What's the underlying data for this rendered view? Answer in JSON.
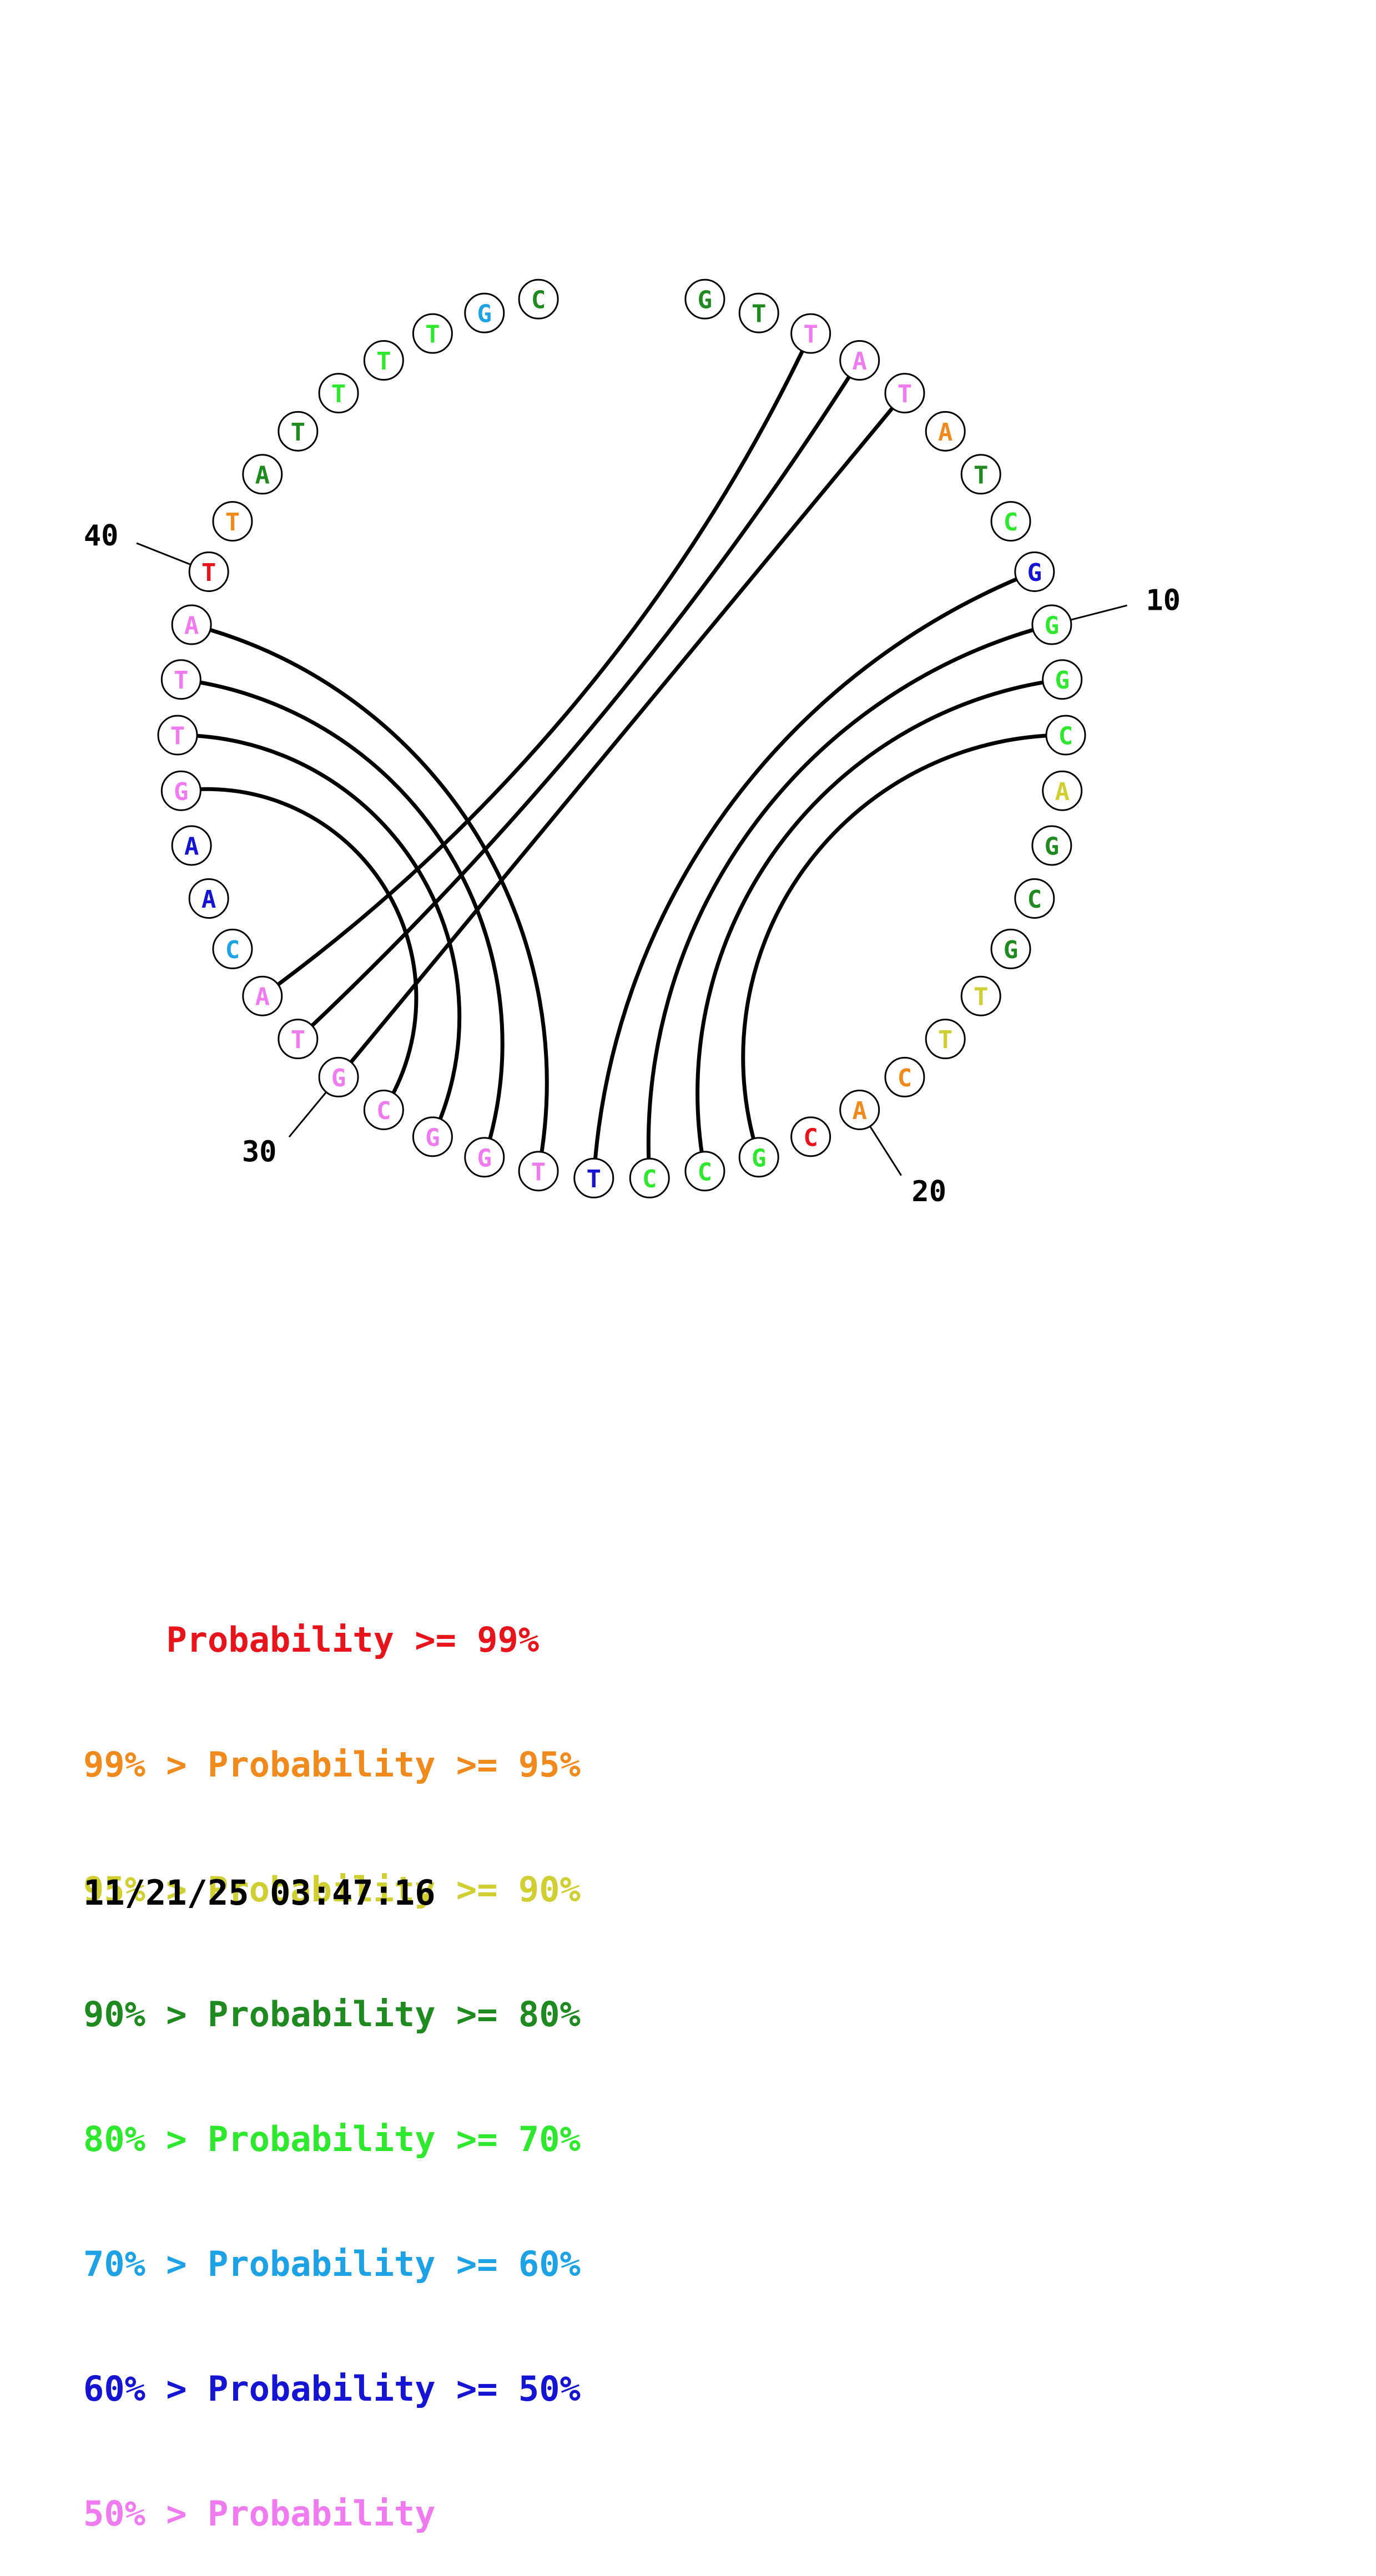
{
  "colors": {
    "p99": "#e8141c",
    "p95": "#f08a1c",
    "p90": "#cfcf32",
    "p80": "#1f8a1f",
    "p70": "#2ee82e",
    "p60": "#1ea2e6",
    "p50": "#1414d2",
    "plt50": "#f07af0"
  },
  "diagram": {
    "bases": [
      {
        "n": 1,
        "letter": "G",
        "color": "p80"
      },
      {
        "n": 2,
        "letter": "T",
        "color": "p80"
      },
      {
        "n": 3,
        "letter": "T",
        "color": "plt50"
      },
      {
        "n": 4,
        "letter": "A",
        "color": "plt50"
      },
      {
        "n": 5,
        "letter": "T",
        "color": "plt50"
      },
      {
        "n": 6,
        "letter": "A",
        "color": "p95"
      },
      {
        "n": 7,
        "letter": "T",
        "color": "p80"
      },
      {
        "n": 8,
        "letter": "C",
        "color": "p70"
      },
      {
        "n": 9,
        "letter": "G",
        "color": "p50"
      },
      {
        "n": 10,
        "letter": "G",
        "color": "p70"
      },
      {
        "n": 11,
        "letter": "G",
        "color": "p70"
      },
      {
        "n": 12,
        "letter": "C",
        "color": "p70"
      },
      {
        "n": 13,
        "letter": "A",
        "color": "p90"
      },
      {
        "n": 14,
        "letter": "G",
        "color": "p80"
      },
      {
        "n": 15,
        "letter": "C",
        "color": "p80"
      },
      {
        "n": 16,
        "letter": "G",
        "color": "p80"
      },
      {
        "n": 17,
        "letter": "T",
        "color": "p90"
      },
      {
        "n": 18,
        "letter": "T",
        "color": "p90"
      },
      {
        "n": 19,
        "letter": "C",
        "color": "p95"
      },
      {
        "n": 20,
        "letter": "A",
        "color": "p95"
      },
      {
        "n": 21,
        "letter": "C",
        "color": "p99"
      },
      {
        "n": 22,
        "letter": "G",
        "color": "p70"
      },
      {
        "n": 23,
        "letter": "C",
        "color": "p70"
      },
      {
        "n": 24,
        "letter": "C",
        "color": "p70"
      },
      {
        "n": 25,
        "letter": "T",
        "color": "p50"
      },
      {
        "n": 26,
        "letter": "T",
        "color": "plt50"
      },
      {
        "n": 27,
        "letter": "G",
        "color": "plt50"
      },
      {
        "n": 28,
        "letter": "G",
        "color": "plt50"
      },
      {
        "n": 29,
        "letter": "C",
        "color": "plt50"
      },
      {
        "n": 30,
        "letter": "G",
        "color": "plt50"
      },
      {
        "n": 31,
        "letter": "T",
        "color": "plt50"
      },
      {
        "n": 32,
        "letter": "A",
        "color": "plt50"
      },
      {
        "n": 33,
        "letter": "C",
        "color": "p60"
      },
      {
        "n": 34,
        "letter": "A",
        "color": "p50"
      },
      {
        "n": 35,
        "letter": "A",
        "color": "p50"
      },
      {
        "n": 36,
        "letter": "G",
        "color": "plt50"
      },
      {
        "n": 37,
        "letter": "T",
        "color": "plt50"
      },
      {
        "n": 38,
        "letter": "T",
        "color": "plt50"
      },
      {
        "n": 39,
        "letter": "A",
        "color": "plt50"
      },
      {
        "n": 40,
        "letter": "T",
        "color": "p99"
      },
      {
        "n": 41,
        "letter": "T",
        "color": "p95"
      },
      {
        "n": 42,
        "letter": "A",
        "color": "p80"
      },
      {
        "n": 43,
        "letter": "T",
        "color": "p80"
      },
      {
        "n": 44,
        "letter": "T",
        "color": "p70"
      },
      {
        "n": 45,
        "letter": "T",
        "color": "p70"
      },
      {
        "n": 46,
        "letter": "T",
        "color": "p70"
      },
      {
        "n": 47,
        "letter": "G",
        "color": "p60"
      },
      {
        "n": 48,
        "letter": "C",
        "color": "p80"
      }
    ],
    "pairs": [
      [
        3,
        32
      ],
      [
        4,
        31
      ],
      [
        5,
        30
      ],
      [
        9,
        25
      ],
      [
        10,
        24
      ],
      [
        11,
        23
      ],
      [
        12,
        22
      ],
      [
        26,
        39
      ],
      [
        27,
        38
      ],
      [
        28,
        37
      ],
      [
        29,
        36
      ]
    ],
    "position_labels": [
      "10",
      "20",
      "30",
      "40"
    ]
  },
  "legend": [
    {
      "prefix": "    ",
      "text": "Probability >= 99%",
      "color": "p99"
    },
    {
      "prefix": "99% > ",
      "text": "Probability >= 95%",
      "color": "p95"
    },
    {
      "prefix": "95% > ",
      "text": "Probability >= 90%",
      "color": "p90"
    },
    {
      "prefix": "90% > ",
      "text": "Probability >= 80%",
      "color": "p80"
    },
    {
      "prefix": "80% > ",
      "text": "Probability >= 70%",
      "color": "p70"
    },
    {
      "prefix": "70% > ",
      "text": "Probability >= 60%",
      "color": "p60"
    },
    {
      "prefix": "60% > ",
      "text": "Probability >= 50%",
      "color": "p50"
    },
    {
      "prefix": "50% > ",
      "text": "Probability",
      "color": "plt50"
    }
  ],
  "timestamp": "11/21/25 03:47:16"
}
